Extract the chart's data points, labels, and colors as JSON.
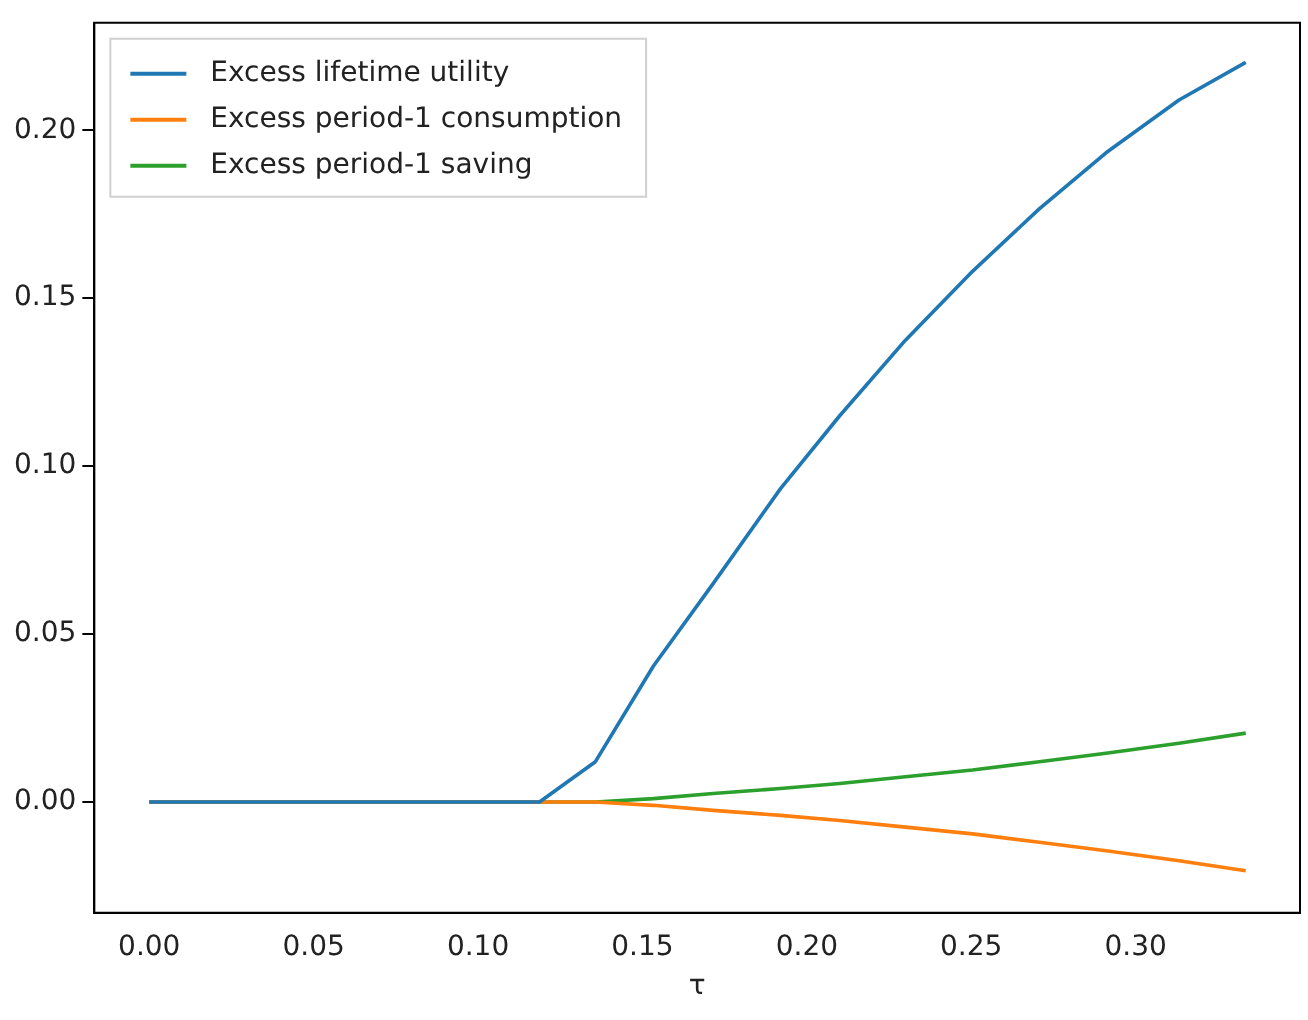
{
  "chart_data": {
    "type": "line",
    "xlabel": "τ",
    "xlim": [
      -0.0167,
      0.35
    ],
    "ylim": [
      -0.033,
      0.232
    ],
    "xticks": [
      {
        "value": 0,
        "label": "0.00"
      },
      {
        "value": 0.05,
        "label": "0.05"
      },
      {
        "value": 0.1,
        "label": "0.10"
      },
      {
        "value": 0.15,
        "label": "0.15"
      },
      {
        "value": 0.2,
        "label": "0.20"
      },
      {
        "value": 0.25,
        "label": "0.25"
      },
      {
        "value": 0.3,
        "label": "0.30"
      }
    ],
    "yticks": [
      {
        "value": 0,
        "label": "0.00"
      },
      {
        "value": 0.05,
        "label": "0.05"
      },
      {
        "value": 0.1,
        "label": "0.10"
      },
      {
        "value": 0.15,
        "label": "0.15"
      },
      {
        "value": 0.2,
        "label": "0.20"
      }
    ],
    "grid": false,
    "legend": "top left",
    "marker": "none",
    "line_style": "solid",
    "series": [
      {
        "name": "Excess lifetime utility",
        "color": "#1f77b4",
        "x": [
          0,
          0.1187,
          0.1357,
          0.1533,
          0.1715,
          0.192,
          0.21,
          0.23,
          0.2504,
          0.2707,
          0.291,
          0.3132,
          0.3335
        ],
        "values": [
          0,
          0,
          0.012,
          0.0404,
          0.065,
          0.0933,
          0.115,
          0.1375,
          0.158,
          0.1766,
          0.1933,
          0.209,
          0.2202
        ]
      },
      {
        "name": "Excess period-1 consumption",
        "color": "#ff7f0e",
        "x": [
          0,
          0.1357,
          0.1533,
          0.1715,
          0.192,
          0.21,
          0.23,
          0.2504,
          0.2707,
          0.291,
          0.3132,
          0.3335
        ],
        "values": [
          0,
          0,
          -0.001,
          -0.0025,
          -0.004,
          -0.0055,
          -0.0075,
          -0.0095,
          -0.012,
          -0.0145,
          -0.0175,
          -0.0205
        ]
      },
      {
        "name": "Excess period-1 saving",
        "color": "#2ca02c",
        "x": [
          0,
          0.1357,
          0.1533,
          0.1715,
          0.192,
          0.21,
          0.23,
          0.2504,
          0.2707,
          0.291,
          0.3132,
          0.3335
        ],
        "values": [
          0,
          0,
          0.001,
          0.0025,
          0.004,
          0.0055,
          0.0075,
          0.0095,
          0.012,
          0.0145,
          0.0175,
          0.0205
        ]
      }
    ]
  }
}
